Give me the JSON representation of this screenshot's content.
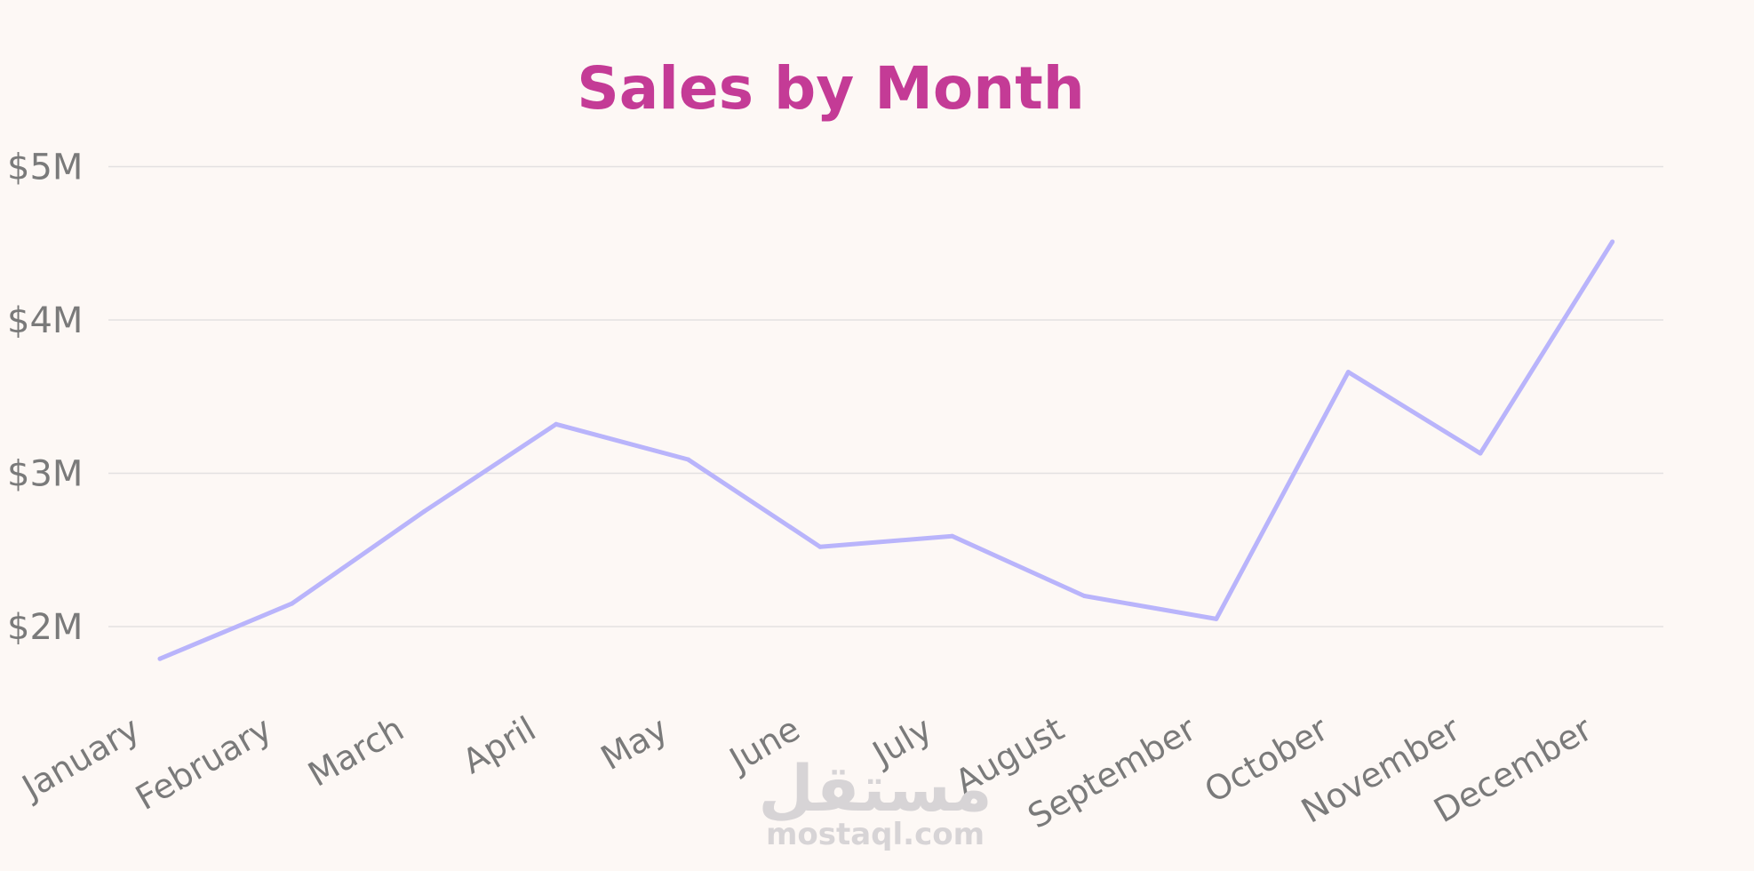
{
  "chart_data": {
    "type": "line",
    "title": "Sales by Month",
    "xlabel": "",
    "ylabel": "",
    "categories": [
      "January",
      "February",
      "March",
      "April",
      "May",
      "June",
      "July",
      "August",
      "September",
      "October",
      "November",
      "December"
    ],
    "series": [
      {
        "values": [
          1.79,
          2.15,
          2.75,
          3.32,
          3.09,
          2.52,
          2.59,
          2.2,
          2.05,
          3.66,
          3.13,
          4.51
        ]
      }
    ],
    "ylim": [
      1.5,
      5.0
    ],
    "y_ticks": [
      {
        "value": 2,
        "label": "$2M"
      },
      {
        "value": 3,
        "label": "$3M"
      },
      {
        "value": 4,
        "label": "$4M"
      },
      {
        "value": 5,
        "label": "$5M"
      }
    ],
    "grid": true,
    "legend": "none"
  },
  "colors": {
    "background": "#fdf8f5",
    "title": "#c43b96",
    "line": "#b9b4fb",
    "axis_text": "#7a7a7a",
    "gridline": "#e4e1e1",
    "watermark": "#d7d4d6"
  },
  "watermark": {
    "logo_text": "مستقل",
    "url_text": "mostaql.com"
  }
}
